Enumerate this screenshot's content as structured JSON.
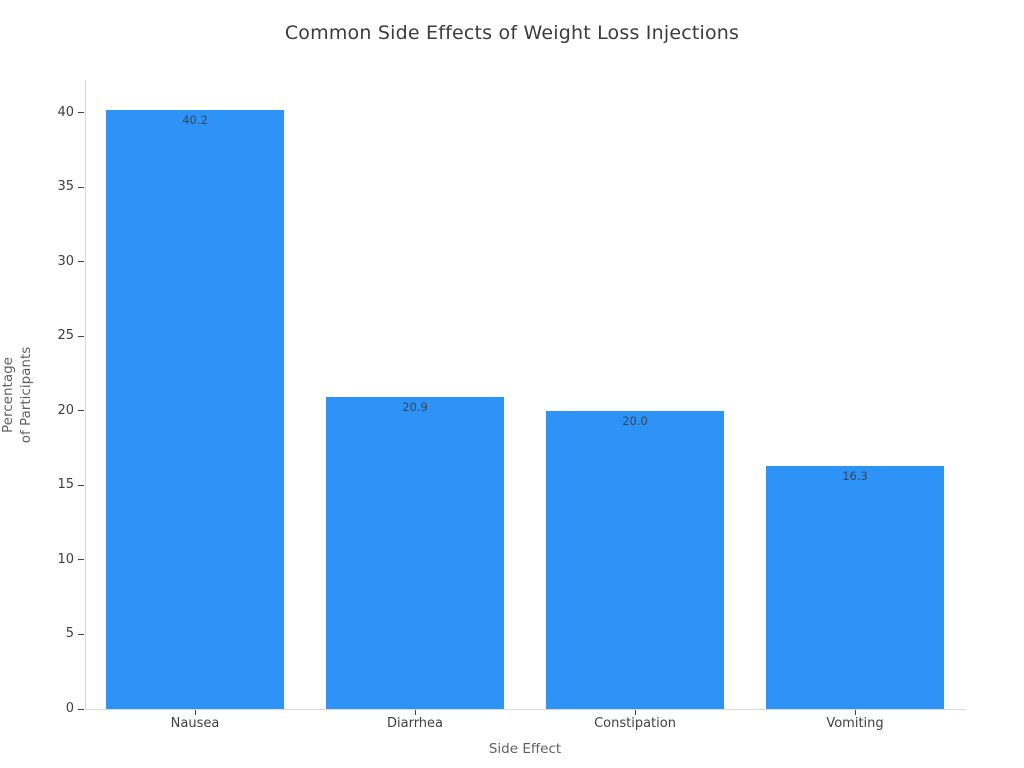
{
  "chart_data": {
    "type": "bar",
    "title": "Common Side Effects of Weight Loss Injections",
    "xlabel": "Side Effect",
    "ylabel": "Percentage\nof Participants",
    "categories": [
      "Nausea",
      "Diarrhea",
      "Constipation",
      "Vomiting"
    ],
    "values": [
      40.2,
      20.9,
      20.0,
      16.3
    ],
    "value_labels": [
      "40.2",
      "20.9",
      "20.0",
      "16.3"
    ],
    "yticks": [
      0,
      5,
      10,
      15,
      20,
      25,
      30,
      35,
      40
    ],
    "ylim": [
      0,
      42.2
    ],
    "grid": false,
    "legend": false,
    "bar_label_position": "inside-top"
  },
  "colors": {
    "background": "#ffffff",
    "bar": "#2E93F7",
    "spine": "#d9d9d9",
    "tick": "#444444",
    "title_text": "#3b3b3b",
    "tick_text": "#3f3f3f",
    "axis_title_text": "#606060",
    "value_label_text": "#3a4653"
  }
}
